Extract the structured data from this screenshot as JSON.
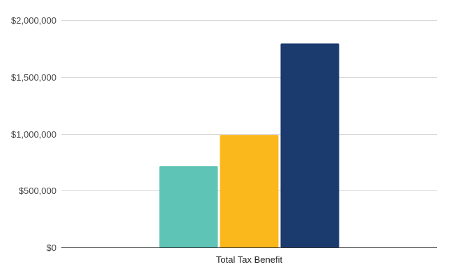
{
  "chart_data": {
    "type": "bar",
    "categories": [
      "Total Tax Benefit"
    ],
    "series": [
      {
        "values": [
          715000
        ],
        "color": "#5ec4b6"
      },
      {
        "values": [
          990000
        ],
        "color": "#fbb81d"
      },
      {
        "values": [
          1795000
        ],
        "color": "#1b3a6e"
      }
    ],
    "ylim": [
      0,
      2000000
    ],
    "yticks": [
      0,
      500000,
      1000000,
      1500000,
      2000000
    ],
    "ytick_labels": [
      "$0",
      "$500,000",
      "$1,000,000",
      "$1,500,000",
      "$2,000,000"
    ],
    "grid": true,
    "legend": "none"
  }
}
